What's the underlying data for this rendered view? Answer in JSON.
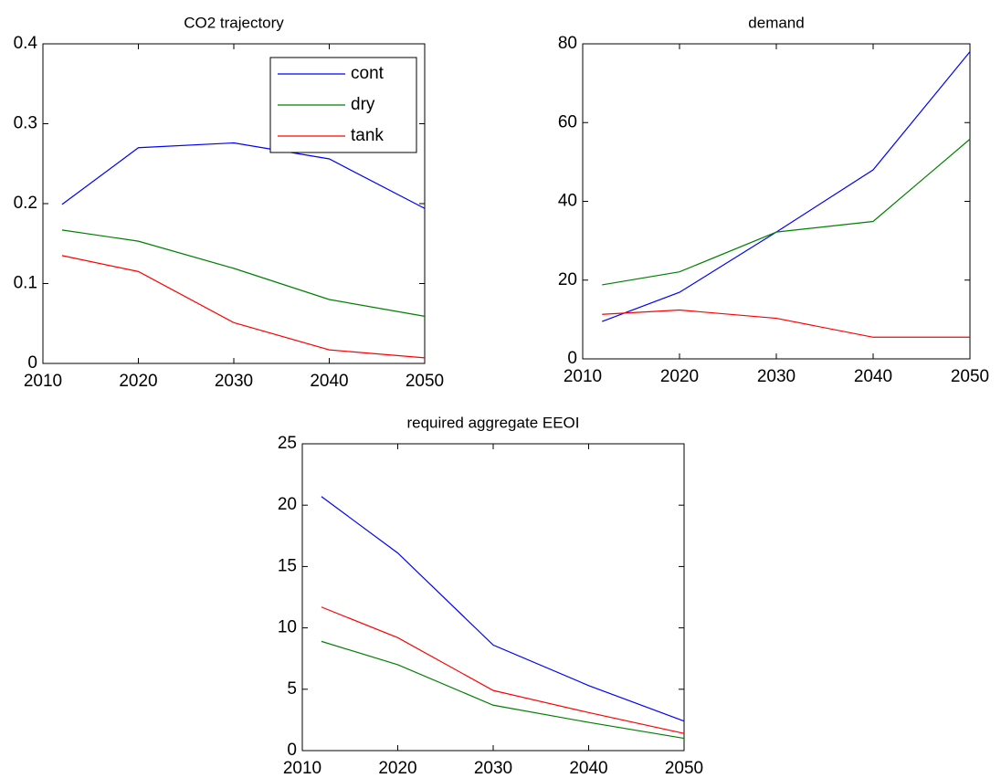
{
  "chart_data": [
    {
      "type": "line",
      "title": "CO2 trajectory",
      "x": [
        2012,
        2020,
        2030,
        2040,
        2050
      ],
      "series": [
        {
          "name": "cont",
          "color": "#0000ff",
          "values": [
            0.199,
            0.27,
            0.276,
            0.256,
            0.194
          ]
        },
        {
          "name": "dry",
          "color": "#008000",
          "values": [
            0.167,
            0.153,
            0.119,
            0.08,
            0.059
          ]
        },
        {
          "name": "tank",
          "color": "#ff0000",
          "values": [
            0.135,
            0.115,
            0.051,
            0.017,
            0.007
          ]
        }
      ],
      "xlim": [
        2010,
        2050
      ],
      "xticks": [
        2010,
        2020,
        2030,
        2040,
        2050
      ],
      "ylim": [
        0,
        0.4
      ],
      "yticks": [
        0,
        0.1,
        0.2,
        0.3,
        0.4
      ],
      "legend": "upper right"
    },
    {
      "type": "line",
      "title": "demand",
      "x": [
        2012,
        2020,
        2030,
        2040,
        2050
      ],
      "series": [
        {
          "color": "#0000ff",
          "values": [
            9.5,
            16.9,
            32.2,
            48,
            78
          ]
        },
        {
          "color": "#008000",
          "values": [
            18.8,
            22.1,
            32.2,
            34.9,
            55.8
          ]
        },
        {
          "color": "#ff0000",
          "values": [
            11.3,
            12.4,
            10.3,
            5.5,
            5.5
          ]
        }
      ],
      "xlim": [
        2010,
        2050
      ],
      "xticks": [
        2010,
        2020,
        2030,
        2040,
        2050
      ],
      "ylim": [
        0,
        80
      ],
      "yticks": [
        0,
        20,
        40,
        60,
        80
      ]
    },
    {
      "type": "line",
      "title": "required aggregate EEOI",
      "x": [
        2012,
        2020,
        2030,
        2040,
        2050
      ],
      "series": [
        {
          "color": "#0000ff",
          "values": [
            20.7,
            16.1,
            8.6,
            5.3,
            2.4
          ]
        },
        {
          "color": "#008000",
          "values": [
            8.9,
            7.0,
            3.7,
            2.3,
            1.0
          ]
        },
        {
          "color": "#ff0000",
          "values": [
            11.7,
            9.2,
            4.9,
            3.1,
            1.4
          ]
        }
      ],
      "xlim": [
        2010,
        2050
      ],
      "xticks": [
        2010,
        2020,
        2030,
        2040,
        2050
      ],
      "ylim": [
        0,
        25
      ],
      "yticks": [
        0,
        5,
        10,
        15,
        20,
        25
      ]
    }
  ]
}
